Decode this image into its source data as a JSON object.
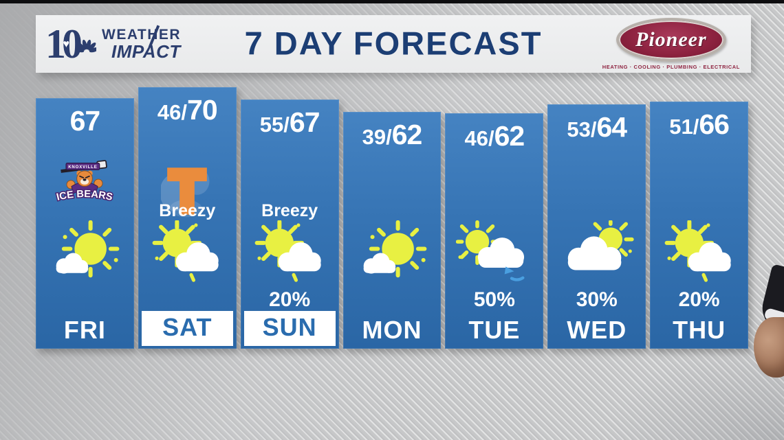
{
  "header": {
    "station": {
      "channel_number": "10",
      "heart": "♥",
      "brand_line1": "WEATHER",
      "brand_line2": "IMPACT",
      "network_icon": "nbc-peacock"
    },
    "title": "7 DAY FORECAST",
    "sponsor": {
      "name": "Pioneer",
      "tagline": "HEATING · COOLING · PLUMBING · ELECTRICAL"
    }
  },
  "forecast": {
    "days": [
      {
        "day": "FRI",
        "low": "",
        "high": "67",
        "note": "",
        "precip": "",
        "icon": "mostly-sunny",
        "icon_name": "mostly-sunny-icon",
        "badge": "ice-bears",
        "badge_name": "ice-bears-logo"
      },
      {
        "day": "SAT",
        "low": "46/",
        "high": "70",
        "note": "Breezy",
        "precip": "",
        "icon": "partly-cloudy",
        "icon_name": "partly-cloudy-icon",
        "badge": "tennessee-t",
        "badge_name": "tennessee-power-t-logo"
      },
      {
        "day": "SUN",
        "low": "55/",
        "high": "67",
        "note": "Breezy",
        "precip": "20%",
        "icon": "partly-cloudy",
        "icon_name": "partly-cloudy-icon",
        "badge": ""
      },
      {
        "day": "MON",
        "low": "39/",
        "high": "62",
        "note": "",
        "precip": "",
        "icon": "mostly-sunny",
        "icon_name": "mostly-sunny-icon",
        "badge": ""
      },
      {
        "day": "TUE",
        "low": "46/",
        "high": "62",
        "note": "",
        "precip": "50%",
        "icon": "sun-cloud-showers",
        "icon_name": "sun-cloud-showers-icon",
        "badge": ""
      },
      {
        "day": "WED",
        "low": "53/",
        "high": "64",
        "note": "",
        "precip": "30%",
        "icon": "mostly-cloudy",
        "icon_name": "mostly-cloudy-icon",
        "badge": ""
      },
      {
        "day": "THU",
        "low": "51/",
        "high": "66",
        "note": "",
        "precip": "20%",
        "icon": "partly-cloudy",
        "icon_name": "partly-cloudy-icon",
        "badge": ""
      }
    ],
    "badges": {
      "ice_bears": {
        "team": "ICE BEARS",
        "city": "KNOXVILLE"
      },
      "tennessee": {
        "name": "tennessee-power-t"
      }
    }
  },
  "colors": {
    "column_blue_top": "#4583c2",
    "column_blue_bottom": "#2a66a5",
    "title_navy": "#1c3e74",
    "logo_navy": "#2c3e6e",
    "day_label_blue": "#2a6cae",
    "sun_yellow": "#e8f042",
    "rain_blue": "#4a9fe0",
    "sponsor_maroon": "#8e2340",
    "tennessee_orange": "#ea8c3d"
  },
  "chart_data": {
    "type": "table",
    "title": "7 DAY FORECAST",
    "categories": [
      "FRI",
      "SAT",
      "SUN",
      "MON",
      "TUE",
      "WED",
      "THU"
    ],
    "series": [
      {
        "name": "Low (°F)",
        "values": [
          null,
          46,
          55,
          39,
          46,
          53,
          51
        ]
      },
      {
        "name": "High (°F)",
        "values": [
          67,
          70,
          67,
          62,
          62,
          64,
          66
        ]
      },
      {
        "name": "Precip chance (%)",
        "values": [
          null,
          null,
          20,
          null,
          50,
          30,
          20
        ]
      }
    ],
    "conditions": [
      "Mostly Sunny",
      "Partly Cloudy, Breezy",
      "Partly Cloudy, Breezy",
      "Mostly Sunny",
      "Chance Showers",
      "Mostly Cloudy",
      "Partly Cloudy"
    ],
    "notes": "Column height scales with high temperature; SAT and SUN labels shown in white highlight boxes"
  }
}
